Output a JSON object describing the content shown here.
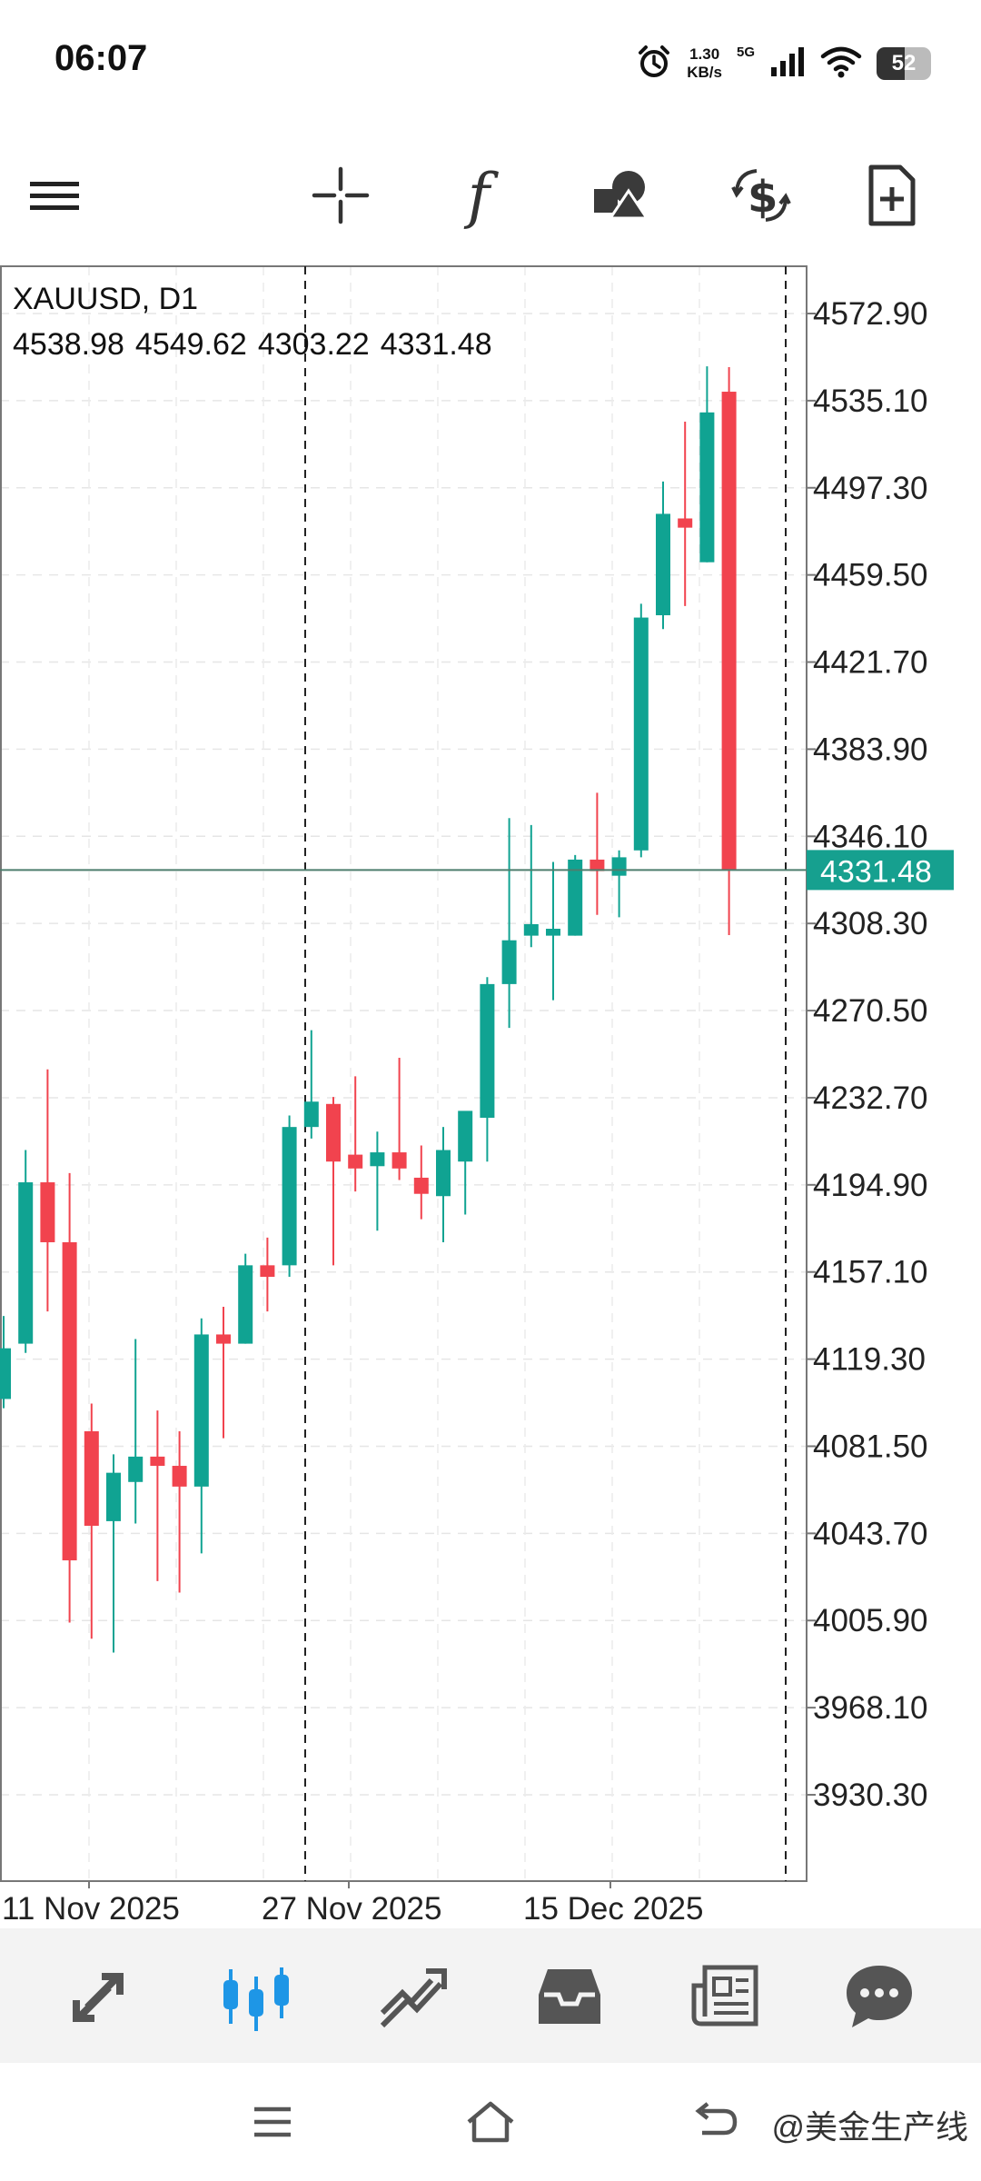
{
  "status_bar": {
    "time": "06:07",
    "net_speed_value": "1.30",
    "net_speed_unit": "KB/s",
    "network": "5G",
    "battery": "52",
    "icons": [
      "alarm-icon",
      "signal-icon",
      "wifi-icon",
      "battery-icon"
    ]
  },
  "toolbar": {
    "items": [
      {
        "name": "menu",
        "icon": "hamburger-icon"
      },
      {
        "name": "crosshair",
        "icon": "crosshair-icon"
      },
      {
        "name": "indicators",
        "icon": "function-icon",
        "glyph": "f"
      },
      {
        "name": "objects",
        "icon": "shapes-icon"
      },
      {
        "name": "symbol",
        "icon": "currency-icon"
      },
      {
        "name": "new-order",
        "icon": "document-plus-icon"
      }
    ]
  },
  "chart_data": {
    "type": "candlestick",
    "symbol": "XAUUSD",
    "timeframe": "D1",
    "symbol_label": "XAUUSD, D1",
    "ohlc": [
      "4538.98",
      "4549.62",
      "4303.22",
      "4331.48"
    ],
    "current_price": "4331.48",
    "y_ticks": [
      "4572.90",
      "4535.10",
      "4497.30",
      "4459.50",
      "4421.70",
      "4383.90",
      "4346.10",
      "4308.30",
      "4270.50",
      "4232.70",
      "4194.90",
      "4157.10",
      "4119.30",
      "4081.50",
      "4043.70",
      "4005.90",
      "3968.10",
      "3930.30"
    ],
    "x_labels": [
      "11 Nov 2025",
      "27 Nov 2025",
      "15 Dec 2025"
    ],
    "grid": true,
    "colors": {
      "up": "#10a392",
      "down": "#f1434e",
      "price_line": "#4e7e6e",
      "price_badge": "#16a08f"
    },
    "candles": [
      {
        "o": 4102,
        "h": 4138,
        "l": 4098,
        "c": 4124
      },
      {
        "o": 4126,
        "h": 4210,
        "l": 4122,
        "c": 4196
      },
      {
        "o": 4196,
        "h": 4245,
        "l": 4140,
        "c": 4170
      },
      {
        "o": 4170,
        "h": 4200,
        "l": 4005,
        "c": 4032
      },
      {
        "o": 4088,
        "h": 4100,
        "l": 3998,
        "c": 4047
      },
      {
        "o": 4049,
        "h": 4078,
        "l": 3992,
        "c": 4070
      },
      {
        "o": 4066,
        "h": 4128,
        "l": 4048,
        "c": 4077
      },
      {
        "o": 4077,
        "h": 4097,
        "l": 4023,
        "c": 4073
      },
      {
        "o": 4073,
        "h": 4088,
        "l": 4018,
        "c": 4064
      },
      {
        "o": 4064,
        "h": 4137,
        "l": 4035,
        "c": 4130
      },
      {
        "o": 4130,
        "h": 4142,
        "l": 4085,
        "c": 4126
      },
      {
        "o": 4126,
        "h": 4165,
        "l": 4126,
        "c": 4160
      },
      {
        "o": 4160,
        "h": 4172,
        "l": 4140,
        "c": 4155
      },
      {
        "o": 4160,
        "h": 4225,
        "l": 4155,
        "c": 4220
      },
      {
        "o": 4220,
        "h": 4262,
        "l": 4215,
        "c": 4231
      },
      {
        "o": 4230,
        "h": 4233,
        "l": 4160,
        "c": 4205
      },
      {
        "o": 4208,
        "h": 4242,
        "l": 4192,
        "c": 4202
      },
      {
        "o": 4203,
        "h": 4218,
        "l": 4175,
        "c": 4209
      },
      {
        "o": 4209,
        "h": 4250,
        "l": 4197,
        "c": 4202
      },
      {
        "o": 4198,
        "h": 4212,
        "l": 4180,
        "c": 4191
      },
      {
        "o": 4190,
        "h": 4220,
        "l": 4170,
        "c": 4210
      },
      {
        "o": 4205,
        "h": 4225,
        "l": 4182,
        "c": 4227
      },
      {
        "o": 4224,
        "h": 4285,
        "l": 4205,
        "c": 4282
      },
      {
        "o": 4282,
        "h": 4354,
        "l": 4263,
        "c": 4301
      },
      {
        "o": 4303,
        "h": 4351,
        "l": 4298,
        "c": 4308
      },
      {
        "o": 4303,
        "h": 4335,
        "l": 4275,
        "c": 4306
      },
      {
        "o": 4303,
        "h": 4338,
        "l": 4303,
        "c": 4336
      },
      {
        "o": 4336,
        "h": 4365,
        "l": 4312,
        "c": 4331
      },
      {
        "o": 4329,
        "h": 4340,
        "l": 4311,
        "c": 4337
      },
      {
        "o": 4340,
        "h": 4447,
        "l": 4337,
        "c": 4441
      },
      {
        "o": 4442,
        "h": 4500,
        "l": 4436,
        "c": 4486
      },
      {
        "o": 4484,
        "h": 4526,
        "l": 4446,
        "c": 4480
      },
      {
        "o": 4465,
        "h": 4550,
        "l": 4465,
        "c": 4530
      },
      {
        "o": 4538.98,
        "h": 4549.62,
        "l": 4303.22,
        "c": 4331.48
      }
    ]
  },
  "bottom_nav": {
    "items": [
      {
        "name": "quotes",
        "icon": "arrows-icon",
        "active": false
      },
      {
        "name": "chart",
        "icon": "candles-icon",
        "active": true
      },
      {
        "name": "trade",
        "icon": "trend-icon",
        "active": false
      },
      {
        "name": "history",
        "icon": "inbox-icon",
        "active": false
      },
      {
        "name": "news",
        "icon": "news-icon",
        "active": false
      },
      {
        "name": "messages",
        "icon": "chat-icon",
        "active": false
      }
    ],
    "active_color": "#1e96e6",
    "inactive_color": "#555555"
  },
  "system_nav": {
    "watermark": "@美金生产线",
    "icons": [
      "recents-icon",
      "home-icon",
      "back-icon"
    ]
  }
}
